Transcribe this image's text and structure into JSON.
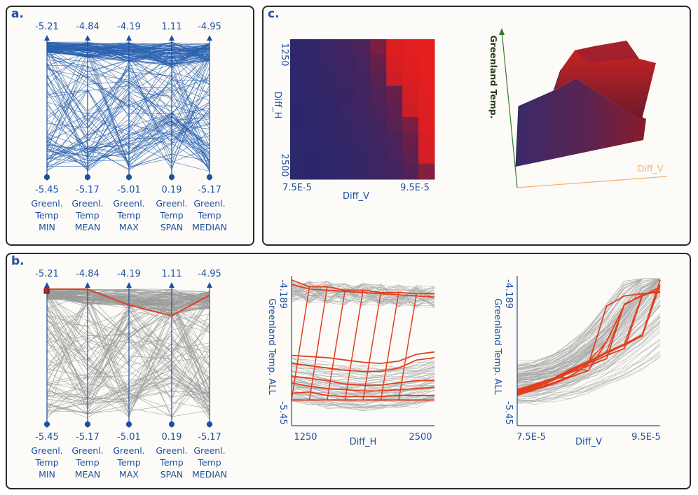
{
  "panels": {
    "a": "a.",
    "b": "b.",
    "c": "c."
  },
  "colors": {
    "blue": "#1f4fa0",
    "line_blue": "#2a62b0",
    "gray": "#9a9a9a",
    "highlight": "#e0401e",
    "panel_border": "#2a2a2a",
    "greenland_axis": "#2f7d2f",
    "diffv_axis": "#f0b070"
  },
  "chart_data": [
    {
      "id": "a",
      "type": "parallel-coordinates",
      "axes": [
        {
          "name": [
            "Greenl.",
            "Temp",
            "MIN"
          ],
          "max": -5.21,
          "min": -5.45,
          "max_label": "-5.21",
          "min_label": "-5.45"
        },
        {
          "name": [
            "Greenl.",
            "Temp",
            "MEAN"
          ],
          "max": -4.84,
          "min": -5.17,
          "max_label": "-4.84",
          "min_label": "-5.17"
        },
        {
          "name": [
            "Greenl.",
            "Temp",
            "MAX"
          ],
          "max": -4.19,
          "min": -5.01,
          "max_label": "-4.19",
          "min_label": "-5.01"
        },
        {
          "name": [
            "Greenl.",
            "Temp",
            "SPAN"
          ],
          "max": 1.11,
          "min": 0.19,
          "max_label": "1.11",
          "min_label": "0.19"
        },
        {
          "name": [
            "Greenl.",
            "Temp",
            "MEDIAN"
          ],
          "max": -4.95,
          "min": -5.17,
          "max_label": "-4.95",
          "min_label": "-5.17"
        }
      ],
      "line_color": "blue"
    },
    {
      "id": "b-parallel",
      "type": "parallel-coordinates",
      "axes": [
        {
          "name": [
            "Greenl.",
            "Temp",
            "MIN"
          ],
          "max": -5.21,
          "min": -5.45,
          "max_label": "-5.21",
          "min_label": "-5.45"
        },
        {
          "name": [
            "Greenl.",
            "Temp",
            "MEAN"
          ],
          "max": -4.84,
          "min": -5.17,
          "max_label": "-4.84",
          "min_label": "-5.17"
        },
        {
          "name": [
            "Greenl.",
            "Temp",
            "MAX"
          ],
          "max": -4.19,
          "min": -5.01,
          "max_label": "-4.19",
          "min_label": "-5.01"
        },
        {
          "name": [
            "Greenl.",
            "Temp",
            "SPAN"
          ],
          "max": 1.11,
          "min": 0.19,
          "max_label": "1.11",
          "min_label": "0.19"
        },
        {
          "name": [
            "Greenl.",
            "Temp",
            "MEDIAN"
          ],
          "max": -4.95,
          "min": -5.17,
          "max_label": "-4.95",
          "min_label": "-5.17"
        }
      ],
      "line_color": "gray",
      "highlight_values": [
        -5.21,
        -4.84,
        -4.29,
        0.92,
        -4.96
      ]
    },
    {
      "id": "c-heatmap",
      "type": "heatmap",
      "xlabel": "Diff_V",
      "ylabel": "Diff_H",
      "x_ticks": [
        "7.5E-5",
        "9.5E-5"
      ],
      "y_ticks": [
        "1250",
        "2500"
      ],
      "x_range": [
        7.5e-05,
        9.5e-05
      ],
      "y_range": [
        1250,
        2500
      ],
      "x": [
        7.5e-05,
        7.75e-05,
        8e-05,
        8.25e-05,
        8.5e-05,
        8.75e-05,
        9e-05,
        9.25e-05,
        9.5e-05
      ],
      "y": [
        1250,
        1406,
        1562,
        1718,
        1875,
        2031,
        2187,
        2343,
        2500
      ],
      "values": [
        [
          0.05,
          0.08,
          0.12,
          0.18,
          0.26,
          0.55,
          0.96,
          0.98,
          1.0
        ],
        [
          0.05,
          0.08,
          0.12,
          0.16,
          0.22,
          0.45,
          0.94,
          0.97,
          1.0
        ],
        [
          0.04,
          0.07,
          0.1,
          0.15,
          0.2,
          0.35,
          0.9,
          0.96,
          0.99
        ],
        [
          0.04,
          0.06,
          0.09,
          0.13,
          0.18,
          0.28,
          0.45,
          0.93,
          0.98
        ],
        [
          0.03,
          0.05,
          0.08,
          0.12,
          0.16,
          0.24,
          0.38,
          0.9,
          0.97
        ],
        [
          0.03,
          0.05,
          0.07,
          0.1,
          0.14,
          0.2,
          0.32,
          0.55,
          0.96
        ],
        [
          0.02,
          0.04,
          0.06,
          0.09,
          0.12,
          0.18,
          0.26,
          0.45,
          0.94
        ],
        [
          0.02,
          0.03,
          0.05,
          0.08,
          0.11,
          0.16,
          0.22,
          0.38,
          0.92
        ],
        [
          0.02,
          0.03,
          0.05,
          0.07,
          0.1,
          0.14,
          0.2,
          0.3,
          0.6
        ]
      ]
    },
    {
      "id": "c-surface",
      "type": "surface-3d",
      "z_axis_label": "Greenland Temp.",
      "x_axis_label": "Diff_V"
    },
    {
      "id": "b-diffh",
      "type": "line",
      "xlabel": "Diff_H",
      "ylabel": "Greenland Temp. ALL",
      "x_ticks": [
        "1250",
        "2500"
      ],
      "y_ticks": [
        "-4.189",
        "-5.45"
      ],
      "xlim": [
        1250,
        2500
      ],
      "ylim": [
        -5.45,
        -4.189
      ],
      "highlight_series": [
        {
          "x": [
            1250,
            1406,
            1562,
            1718,
            1875,
            2031,
            2187,
            2343,
            2500
          ],
          "y": [
            -4.2,
            -4.26,
            -4.26,
            -4.29,
            -4.29,
            -4.31,
            -4.31,
            -4.32,
            -4.32
          ]
        },
        {
          "x": [
            1250,
            1406,
            1562,
            1718,
            1875,
            2031,
            2187,
            2343,
            2500
          ],
          "y": [
            -4.24,
            -4.28,
            -4.29,
            -4.3,
            -4.31,
            -4.32,
            -4.33,
            -4.34,
            -4.35
          ]
        },
        {
          "x": [
            1250,
            1406,
            1562,
            1718,
            1875,
            2031,
            2187,
            2343,
            2500
          ],
          "y": [
            -4.86,
            -4.87,
            -4.88,
            -4.9,
            -4.92,
            -4.93,
            -4.91,
            -4.85,
            -4.83
          ]
        },
        {
          "x": [
            1250,
            1406,
            1562,
            1718,
            1875,
            2031,
            2187,
            2343,
            2500
          ],
          "y": [
            -4.93,
            -4.95,
            -4.97,
            -4.99,
            -5.0,
            -5.0,
            -4.97,
            -4.9,
            -4.88
          ]
        },
        {
          "x": [
            1250,
            1406,
            1562,
            1718,
            1875,
            2031,
            2187,
            2343,
            2500
          ],
          "y": [
            -5.04,
            -5.06,
            -5.08,
            -5.11,
            -5.12,
            -5.12,
            -5.1,
            -5.08,
            -5.08
          ]
        },
        {
          "x": [
            1250,
            1406,
            1562,
            1718,
            1875,
            2031,
            2187,
            2343,
            2500
          ],
          "y": [
            -5.1,
            -5.13,
            -5.15,
            -5.16,
            -5.17,
            -5.17,
            -5.16,
            -5.15,
            -5.14
          ]
        },
        {
          "x": [
            1250,
            1406,
            1562,
            1718,
            1875,
            2031,
            2187,
            2343,
            2500
          ],
          "y": [
            -5.19,
            -5.18,
            -5.21,
            -5.22,
            -5.22,
            -5.22,
            -5.21,
            -5.21,
            -5.21
          ]
        },
        {
          "x": [
            1250,
            1406,
            1562,
            1718,
            1875,
            2031,
            2187,
            2343,
            2500
          ],
          "y": [
            -5.25,
            -5.25,
            -5.25,
            -5.25,
            -5.25,
            -5.25,
            -5.25,
            -5.25,
            -5.25
          ]
        }
      ]
    },
    {
      "id": "b-diffv",
      "type": "line",
      "xlabel": "Diff_V",
      "ylabel": "Greenland Temp. ALL",
      "x_ticks": [
        "7.5E-5",
        "9.5E-5"
      ],
      "y_ticks": [
        "-4.189",
        "-5.45"
      ],
      "xlim": [
        7.5e-05,
        9.5e-05
      ],
      "ylim": [
        -5.45,
        -4.189
      ],
      "highlight_series": [
        {
          "x": [
            7.5e-05,
            7.75e-05,
            8e-05,
            8.25e-05,
            8.5e-05,
            8.75e-05,
            9e-05,
            9.25e-05,
            9.5e-05
          ],
          "y": [
            -5.21,
            -5.16,
            -5.11,
            -5.05,
            -4.99,
            -4.74,
            -4.42,
            -4.33,
            -4.3
          ]
        },
        {
          "x": [
            7.5e-05,
            7.75e-05,
            8e-05,
            8.25e-05,
            8.5e-05,
            8.75e-05,
            9e-05,
            9.25e-05,
            9.5e-05
          ],
          "y": [
            -5.2,
            -5.15,
            -5.1,
            -5.04,
            -4.93,
            -4.43,
            -4.34,
            -4.32,
            -4.31
          ]
        },
        {
          "x": [
            7.5e-05,
            7.75e-05,
            8e-05,
            8.25e-05,
            8.5e-05,
            8.75e-05,
            9e-05,
            9.25e-05,
            9.5e-05
          ],
          "y": [
            -5.19,
            -5.14,
            -5.08,
            -5.01,
            -4.95,
            -4.89,
            -4.41,
            -4.34,
            -4.28
          ]
        },
        {
          "x": [
            7.5e-05,
            7.75e-05,
            8e-05,
            8.25e-05,
            8.5e-05,
            8.75e-05,
            9e-05,
            9.25e-05,
            9.5e-05
          ],
          "y": [
            -5.18,
            -5.13,
            -5.07,
            -5.0,
            -4.93,
            -4.86,
            -4.8,
            -4.34,
            -4.26
          ]
        },
        {
          "x": [
            7.5e-05,
            7.75e-05,
            8e-05,
            8.25e-05,
            8.5e-05,
            8.75e-05,
            9e-05,
            9.25e-05,
            9.5e-05
          ],
          "y": [
            -5.17,
            -5.12,
            -5.06,
            -4.99,
            -4.92,
            -4.84,
            -4.77,
            -4.69,
            -4.24
          ]
        },
        {
          "x": [
            7.5e-05,
            7.75e-05,
            8e-05,
            8.25e-05,
            8.5e-05,
            8.75e-05,
            9e-05,
            9.25e-05,
            9.5e-05
          ],
          "y": [
            -5.16,
            -5.11,
            -5.06,
            -4.98,
            -4.91,
            -4.83,
            -4.76,
            -4.68,
            -4.2
          ]
        }
      ]
    }
  ]
}
